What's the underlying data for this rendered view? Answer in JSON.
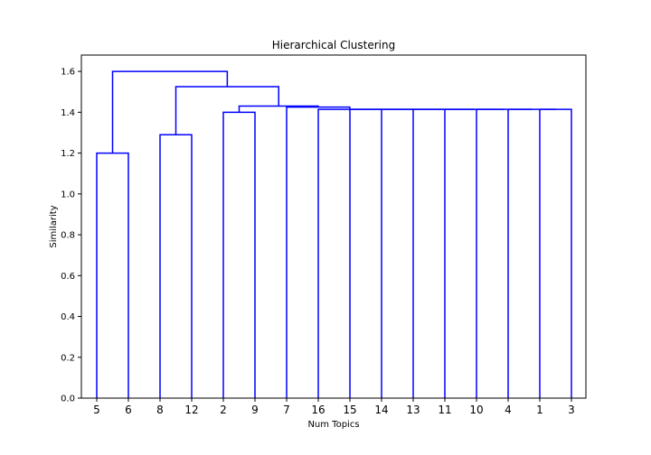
{
  "chart_data": {
    "type": "dendrogram",
    "title": "Hierarchical Clustering",
    "xlabel": "Num Topics",
    "ylabel": "Similarity",
    "ylim": [
      0,
      1.68
    ],
    "yticks": [
      0.0,
      0.2,
      0.4,
      0.6,
      0.8,
      1.0,
      1.2,
      1.4,
      1.6
    ],
    "leaves": [
      "5",
      "6",
      "8",
      "12",
      "2",
      "9",
      "7",
      "16",
      "15",
      "14",
      "13",
      "11",
      "10",
      "4",
      "1",
      "3"
    ],
    "merges": [
      {
        "left": "3",
        "right": "1",
        "height": 1.414
      },
      {
        "left": "4",
        "right": "(3+1)",
        "height": 1.414
      },
      {
        "left": "10",
        "right": "(4+...)",
        "height": 1.414
      },
      {
        "left": "11",
        "right": "(10+...)",
        "height": 1.414
      },
      {
        "left": "13",
        "right": "(11+...)",
        "height": 1.414
      },
      {
        "left": "14",
        "right": "(13+...)",
        "height": 1.414
      },
      {
        "left": "15",
        "right": "(14+...)",
        "height": 1.414
      },
      {
        "left": "16",
        "right": "(15+...)",
        "height": 1.414
      },
      {
        "left": "7",
        "right": "(16+...)",
        "height": 1.425
      },
      {
        "left": "2",
        "right": "9",
        "height": 1.4
      },
      {
        "left": "(2+9)",
        "right": "(7+...)",
        "height": 1.43
      },
      {
        "left": "8",
        "right": "12",
        "height": 1.29
      },
      {
        "left": "(8+12)",
        "right": "(2+9+7+...)",
        "height": 1.525
      },
      {
        "left": "5",
        "right": "6",
        "height": 1.2
      },
      {
        "left": "(5+6)",
        "right": "(8+12+...)",
        "height": 1.6
      }
    ],
    "line_color": "#0000ff",
    "grid": false
  }
}
